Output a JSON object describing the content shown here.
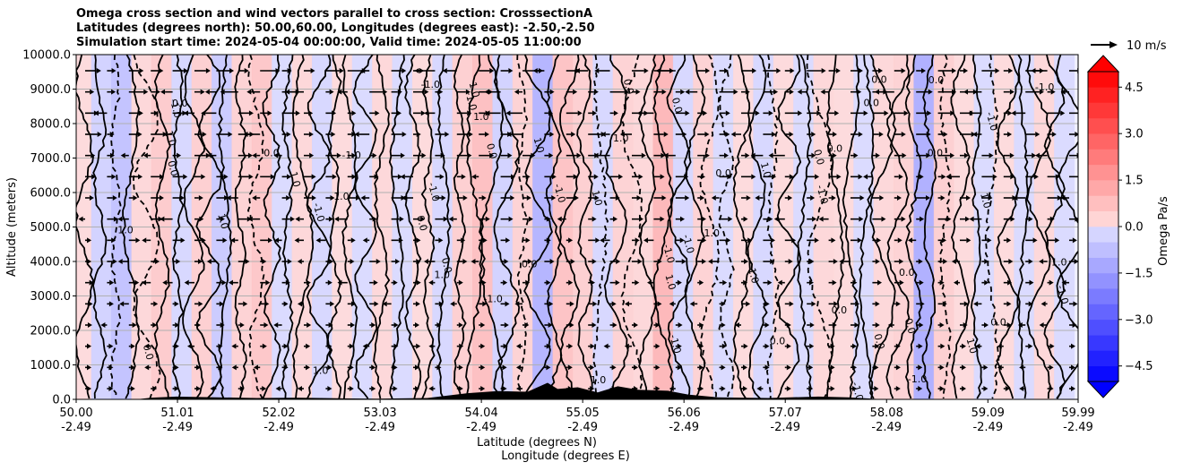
{
  "chart_data": {
    "type": "heatmap",
    "title_lines": [
      "Omega cross section and wind vectors parallel to cross section: CrosssectionA",
      "Latitudes (degrees north): 50.00,60.00, Longitudes (degrees east): -2.50,-2.50",
      "Simulation start time: 2024-05-04 00:00:00, Valid time: 2024-05-05 11:00:00"
    ],
    "ylabel": "Altitude (meters)",
    "xlabel_lines": [
      "Latitude (degrees N)",
      "Longitude (degrees E)"
    ],
    "yticks": [
      "0.0",
      "1000.0",
      "2000.0",
      "3000.0",
      "4000.0",
      "5000.0",
      "6000.0",
      "7000.0",
      "8000.0",
      "9000.0",
      "10000.0"
    ],
    "ylim": [
      0,
      10000
    ],
    "xticks_lat": [
      "50.00",
      "51.01",
      "52.02",
      "53.03",
      "54.04",
      "55.05",
      "56.06",
      "57.07",
      "58.08",
      "59.09",
      "59.99"
    ],
    "xticks_lon": [
      "-2.49",
      "-2.49",
      "-2.49",
      "-2.49",
      "-2.49",
      "-2.49",
      "-2.49",
      "-2.49",
      "-2.49",
      "-2.49",
      "-2.49"
    ],
    "xlim_lat": [
      50.0,
      59.99
    ],
    "grid": true,
    "colorbar": {
      "label": "Omega Pa/s",
      "ticks": [
        "4.5",
        "3.0",
        "1.5",
        "0.0",
        "−1.5",
        "−3.0",
        "−4.5"
      ],
      "range": [
        -5.0,
        5.0
      ],
      "extend": "both",
      "colormap": "bwr"
    },
    "quiver_key": "10 m/s",
    "contour_labels": [
      "0.0",
      "-1.0",
      "1.0"
    ],
    "bands": [
      {
        "lat": 50.05,
        "v": 0.2
      },
      {
        "lat": 50.25,
        "v": -0.4
      },
      {
        "lat": 50.45,
        "v": -0.8
      },
      {
        "lat": 50.65,
        "v": 0.3
      },
      {
        "lat": 50.85,
        "v": 0.6
      },
      {
        "lat": 51.05,
        "v": -0.3
      },
      {
        "lat": 51.25,
        "v": 0.5
      },
      {
        "lat": 51.45,
        "v": -0.6
      },
      {
        "lat": 51.65,
        "v": 0.4
      },
      {
        "lat": 51.85,
        "v": 0.7
      },
      {
        "lat": 52.05,
        "v": -0.2
      },
      {
        "lat": 52.25,
        "v": 0.3
      },
      {
        "lat": 52.45,
        "v": -0.3
      },
      {
        "lat": 52.65,
        "v": 0.2
      },
      {
        "lat": 52.85,
        "v": -0.2
      },
      {
        "lat": 53.05,
        "v": 0.3
      },
      {
        "lat": 53.25,
        "v": -0.2
      },
      {
        "lat": 53.45,
        "v": 0.2
      },
      {
        "lat": 53.65,
        "v": -0.3
      },
      {
        "lat": 53.85,
        "v": 0.5
      },
      {
        "lat": 54.05,
        "v": 0.9
      },
      {
        "lat": 54.25,
        "v": -0.4
      },
      {
        "lat": 54.45,
        "v": 0.4
      },
      {
        "lat": 54.65,
        "v": -1.2
      },
      {
        "lat": 54.85,
        "v": 0.8
      },
      {
        "lat": 55.05,
        "v": 0.5
      },
      {
        "lat": 55.25,
        "v": -0.3
      },
      {
        "lat": 55.45,
        "v": 0.4
      },
      {
        "lat": 55.65,
        "v": 0.3
      },
      {
        "lat": 55.85,
        "v": 1.1
      },
      {
        "lat": 56.05,
        "v": -0.3
      },
      {
        "lat": 56.25,
        "v": 0.4
      },
      {
        "lat": 56.45,
        "v": -0.2
      },
      {
        "lat": 56.65,
        "v": 0.2
      },
      {
        "lat": 56.85,
        "v": -0.3
      },
      {
        "lat": 57.05,
        "v": 0.2
      },
      {
        "lat": 57.25,
        "v": -0.2
      },
      {
        "lat": 57.45,
        "v": 0.3
      },
      {
        "lat": 57.65,
        "v": 0.2
      },
      {
        "lat": 57.85,
        "v": -0.2
      },
      {
        "lat": 58.05,
        "v": 0.3
      },
      {
        "lat": 58.25,
        "v": 0.4
      },
      {
        "lat": 58.45,
        "v": -1.3
      },
      {
        "lat": 58.65,
        "v": 0.5
      },
      {
        "lat": 58.85,
        "v": 0.2
      },
      {
        "lat": 59.05,
        "v": -0.2
      },
      {
        "lat": 59.25,
        "v": 0.2
      },
      {
        "lat": 59.45,
        "v": -0.2
      },
      {
        "lat": 59.65,
        "v": 0.3
      },
      {
        "lat": 59.85,
        "v": -0.2
      }
    ],
    "terrain": [
      {
        "lat": 50.6,
        "h": 0
      },
      {
        "lat": 50.75,
        "h": 50
      },
      {
        "lat": 51.0,
        "h": 80
      },
      {
        "lat": 51.4,
        "h": 60
      },
      {
        "lat": 51.8,
        "h": 40
      },
      {
        "lat": 52.2,
        "h": 50
      },
      {
        "lat": 52.6,
        "h": 30
      },
      {
        "lat": 53.0,
        "h": 20
      },
      {
        "lat": 53.5,
        "h": 40
      },
      {
        "lat": 53.9,
        "h": 180
      },
      {
        "lat": 54.2,
        "h": 240
      },
      {
        "lat": 54.5,
        "h": 220
      },
      {
        "lat": 54.7,
        "h": 480
      },
      {
        "lat": 54.8,
        "h": 300
      },
      {
        "lat": 55.0,
        "h": 350
      },
      {
        "lat": 55.2,
        "h": 200
      },
      {
        "lat": 55.4,
        "h": 380
      },
      {
        "lat": 55.6,
        "h": 280
      },
      {
        "lat": 55.9,
        "h": 250
      },
      {
        "lat": 56.1,
        "h": 140
      },
      {
        "lat": 56.4,
        "h": 60
      },
      {
        "lat": 56.9,
        "h": 40
      },
      {
        "lat": 57.4,
        "h": 80
      },
      {
        "lat": 57.7,
        "h": 60
      },
      {
        "lat": 58.0,
        "h": 10
      },
      {
        "lat": 58.1,
        "h": 0
      }
    ]
  },
  "colors": {
    "positive": "#ff0000",
    "negative": "#0000ff",
    "neutral": "#ffffff",
    "contour": "#000000",
    "terrain": "#000000"
  }
}
